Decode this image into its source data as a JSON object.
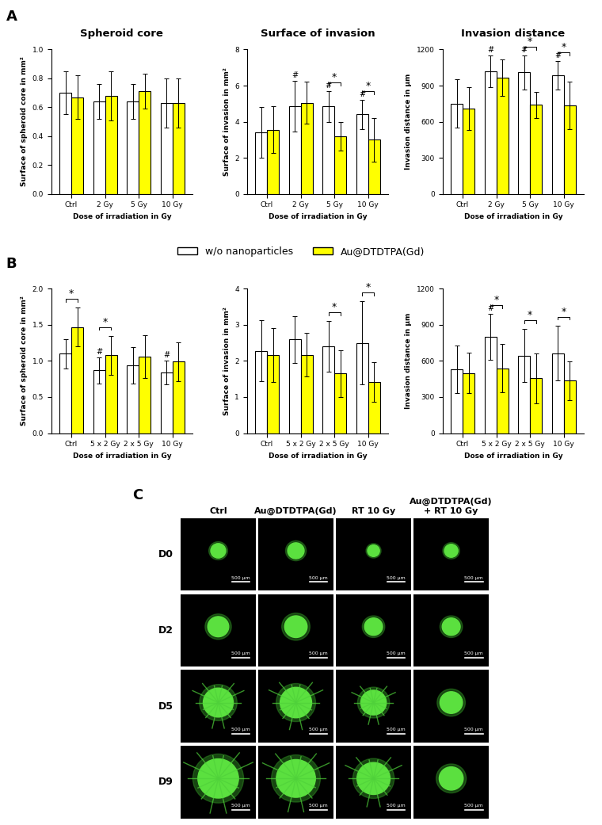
{
  "panel_labels": [
    "A",
    "B",
    "C"
  ],
  "legend": "upper center",
  "chart_data": [
    {
      "type": "bar",
      "title": "Spheroid core",
      "xlabel": "Dose of irradiation in Gy",
      "ylabel": "Surface of spheroid core in mm²",
      "categories": [
        "Ctrl",
        "2 Gy",
        "5 Gy",
        "10 Gy"
      ],
      "series": [
        {
          "name": "w/o nanoparticles",
          "color": "#ffffff",
          "values": [
            0.7,
            0.64,
            0.64,
            0.63
          ],
          "errors": [
            0.15,
            0.12,
            0.12,
            0.17
          ]
        },
        {
          "name": "Au@DTDTPA(Gd)",
          "color": "#ffff00",
          "values": [
            0.67,
            0.68,
            0.71,
            0.63
          ],
          "errors": [
            0.15,
            0.17,
            0.12,
            0.17
          ]
        }
      ],
      "ylim": [
        0.0,
        1.0
      ],
      "yticks": [
        0.0,
        0.2,
        0.4,
        0.6,
        0.8,
        1.0
      ],
      "markers": [],
      "brackets": []
    },
    {
      "type": "bar",
      "title": "Surface of invasion",
      "xlabel": "Dose of irradiation in Gy",
      "ylabel": "Surface of invasion in mm²",
      "categories": [
        "Ctrl",
        "2 Gy",
        "5 Gy",
        "10 Gy"
      ],
      "series": [
        {
          "name": "w/o nanoparticles",
          "color": "#ffffff",
          "values": [
            3.4,
            4.85,
            4.85,
            4.4
          ],
          "errors": [
            1.4,
            1.4,
            0.85,
            0.8
          ]
        },
        {
          "name": "Au@DTDTPA(Gd)",
          "color": "#ffff00",
          "values": [
            3.55,
            5.05,
            3.2,
            3.0
          ],
          "errors": [
            1.3,
            1.15,
            0.8,
            1.2
          ]
        }
      ],
      "ylim": [
        0,
        8
      ],
      "yticks": [
        0,
        2,
        4,
        6,
        8
      ],
      "markers": [
        {
          "series": 0,
          "category": 1,
          "text": "#"
        },
        {
          "series": 0,
          "category": 2,
          "text": "#"
        },
        {
          "series": 0,
          "category": 3,
          "text": "#"
        }
      ],
      "brackets": [
        {
          "category": 2,
          "text": "*"
        },
        {
          "category": 3,
          "text": "*"
        }
      ]
    },
    {
      "type": "bar",
      "title": "Invasion distance",
      "xlabel": "Dose of irradiation in Gy",
      "ylabel": "Invasion distance in µm",
      "categories": [
        "Ctrl",
        "2 Gy",
        "5 Gy",
        "10 Gy"
      ],
      "series": [
        {
          "name": "w/o nanoparticles",
          "color": "#ffffff",
          "values": [
            750,
            1020,
            1010,
            985
          ],
          "errors": [
            200,
            130,
            140,
            120
          ]
        },
        {
          "name": "Au@DTDTPA(Gd)",
          "color": "#ffff00",
          "values": [
            710,
            965,
            740,
            735
          ],
          "errors": [
            180,
            150,
            110,
            200
          ]
        }
      ],
      "ylim": [
        0,
        1200
      ],
      "yticks": [
        0,
        300,
        600,
        900,
        1200
      ],
      "markers": [
        {
          "series": 0,
          "category": 1,
          "text": "#"
        },
        {
          "series": 0,
          "category": 2,
          "text": "#"
        },
        {
          "series": 0,
          "category": 3,
          "text": "#"
        }
      ],
      "brackets": [
        {
          "category": 2,
          "text": "*"
        },
        {
          "category": 3,
          "text": "*"
        }
      ]
    },
    {
      "type": "bar",
      "xlabel": "Dose of irradiation in Gy",
      "ylabel": "Surface of spheroid core in mm²",
      "categories": [
        "Ctrl",
        "5 x 2 Gy",
        "2 x 5 Gy",
        "10 Gy"
      ],
      "series": [
        {
          "name": "w/o nanoparticles",
          "color": "#ffffff",
          "values": [
            1.1,
            0.87,
            0.94,
            0.84
          ],
          "errors": [
            0.2,
            0.18,
            0.25,
            0.17
          ]
        },
        {
          "name": "Au@DTDTPA(Gd)",
          "color": "#ffff00",
          "values": [
            1.47,
            1.08,
            1.06,
            0.99
          ],
          "errors": [
            0.27,
            0.27,
            0.3,
            0.27
          ]
        }
      ],
      "ylim": [
        0.0,
        2.0
      ],
      "yticks": [
        0.0,
        0.5,
        1.0,
        1.5,
        2.0
      ],
      "markers": [
        {
          "series": 0,
          "category": 1,
          "text": "#"
        },
        {
          "series": 0,
          "category": 3,
          "text": "#"
        }
      ],
      "brackets": [
        {
          "category": 0,
          "text": "*"
        },
        {
          "category": 1,
          "text": "*"
        }
      ]
    },
    {
      "type": "bar",
      "xlabel": "Dose of irradiation in Gy",
      "ylabel": "Surface of invasion in mm²",
      "categories": [
        "Ctrl",
        "5 x 2 Gy",
        "2 x 5 Gy",
        "10 Gy"
      ],
      "series": [
        {
          "name": "w/o nanoparticles",
          "color": "#ffffff",
          "values": [
            2.28,
            2.6,
            2.4,
            2.5
          ],
          "errors": [
            0.85,
            0.65,
            0.7,
            1.15
          ]
        },
        {
          "name": "Au@DTDTPA(Gd)",
          "color": "#ffff00",
          "values": [
            2.17,
            2.17,
            1.65,
            1.42
          ],
          "errors": [
            0.75,
            0.6,
            0.65,
            0.55
          ]
        }
      ],
      "ylim": [
        0,
        4
      ],
      "yticks": [
        0,
        1,
        2,
        3,
        4
      ],
      "markers": [],
      "brackets": [
        {
          "category": 2,
          "text": "*"
        },
        {
          "category": 3,
          "text": "*"
        }
      ]
    },
    {
      "type": "bar",
      "xlabel": "Dose of irradiation in Gy",
      "ylabel": "Invasion distance in µm",
      "categories": [
        "Ctrl",
        "5 x 2 Gy",
        "2 x 5 Gy",
        "10 Gy"
      ],
      "series": [
        {
          "name": "w/o nanoparticles",
          "color": "#ffffff",
          "values": [
            530,
            800,
            645,
            665
          ],
          "errors": [
            200,
            190,
            220,
            230
          ]
        },
        {
          "name": "Au@DTDTPA(Gd)",
          "color": "#ffff00",
          "values": [
            500,
            540,
            455,
            435
          ],
          "errors": [
            170,
            200,
            210,
            160
          ]
        }
      ],
      "ylim": [
        0,
        1200
      ],
      "yticks": [
        0,
        300,
        600,
        900,
        1200
      ],
      "markers": [
        {
          "series": 0,
          "category": 1,
          "text": "#"
        }
      ],
      "brackets": [
        {
          "category": 1,
          "text": "*"
        },
        {
          "category": 2,
          "text": "*"
        },
        {
          "category": 3,
          "text": "*"
        }
      ]
    }
  ],
  "images": {
    "columns": [
      "Ctrl",
      "Au@DTDTPA(Gd)",
      "RT 10 Gy",
      "Au@DTDTPA(Gd)\n+ RT 10 Gy"
    ],
    "rows": [
      "D0",
      "D2",
      "D5",
      "D9"
    ],
    "scale_bar": "500 µm"
  }
}
